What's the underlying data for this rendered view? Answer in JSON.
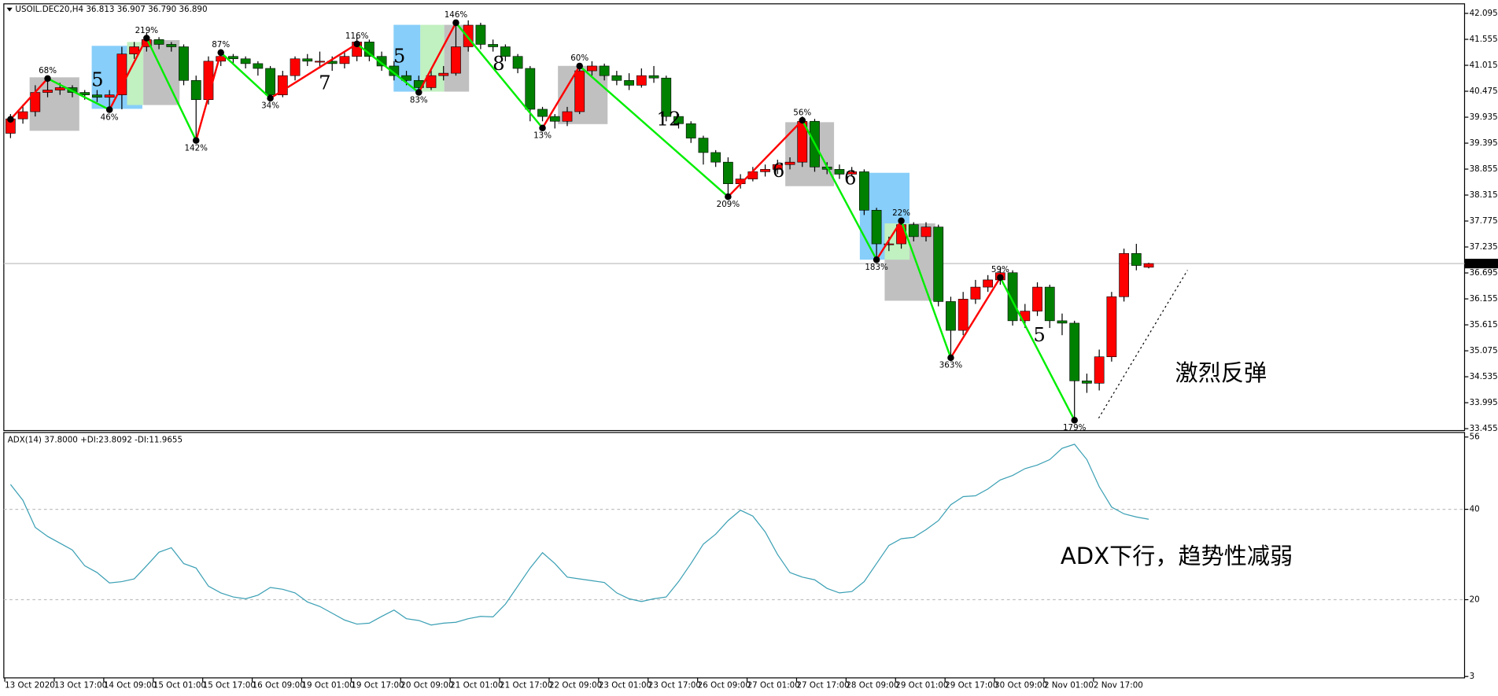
{
  "chart_data": [
    {
      "type": "candlestick",
      "title": "USOIL.DEC20,H4 36.813 36.907 36.790 36.890",
      "categories": [
        "13 Oct 2020",
        null,
        null,
        null,
        "13 Oct 17:00",
        null,
        null,
        null,
        "14 Oct 09:00",
        null,
        null,
        null,
        "15 Oct 01:00",
        null,
        null,
        null,
        "15 Oct 17:00",
        null,
        null,
        null,
        "16 Oct 09:00",
        null,
        null,
        null,
        "19 Oct 01:00",
        null,
        null,
        null,
        "19 Oct 17:00",
        null,
        null,
        null,
        "20 Oct 09:00",
        null,
        null,
        null,
        "21 Oct 01:00",
        null,
        null,
        null,
        "21 Oct 17:00",
        null,
        null,
        null,
        "22 Oct 09:00",
        null,
        null,
        null,
        "23 Oct 01:00",
        null,
        null,
        null,
        "23 Oct 17:00",
        null,
        null,
        null,
        "26 Oct 09:00",
        null,
        null,
        null,
        "27 Oct 01:00",
        null,
        null,
        null,
        "27 Oct 17:00",
        null,
        null,
        null,
        "28 Oct 09:00",
        null,
        null,
        null,
        "29 Oct 01:00",
        null,
        null,
        null,
        "29 Oct 17:00",
        null,
        null,
        null,
        "30 Oct 09:00",
        null,
        null,
        null,
        "2 Nov 01:00",
        null,
        null,
        null,
        "2 Nov 17:00",
        null,
        null,
        null,
        null
      ],
      "open": [
        39.6,
        39.9,
        40.05,
        40.45,
        40.5,
        40.55,
        40.45,
        40.4,
        40.35,
        40.4,
        41.25,
        41.4,
        41.55,
        41.45,
        41.4,
        40.7,
        40.3,
        41.1,
        41.2,
        41.15,
        41.05,
        40.95,
        40.4,
        40.8,
        41.15,
        41.1,
        41.1,
        41.05,
        41.2,
        41.5,
        41.2,
        41.0,
        40.8,
        40.7,
        40.55,
        40.8,
        40.85,
        41.4,
        41.85,
        41.45,
        41.4,
        41.2,
        40.95,
        40.1,
        39.95,
        39.85,
        40.05,
        40.9,
        41.0,
        40.8,
        40.7,
        40.6,
        40.8,
        40.75,
        39.95,
        39.8,
        39.5,
        39.2,
        39.0,
        38.55,
        38.65,
        38.8,
        38.85,
        38.95,
        39.0,
        39.85,
        38.9,
        38.85,
        38.75,
        38.8,
        38.0,
        37.3,
        37.3,
        37.7,
        37.45,
        37.65,
        36.1,
        35.5,
        36.15,
        36.4,
        36.55,
        36.7,
        35.7,
        35.9,
        36.4,
        35.7,
        35.65,
        34.45,
        34.4,
        34.95,
        36.2,
        37.1,
        36.813
      ],
      "high": [
        40.0,
        40.2,
        40.6,
        40.75,
        40.65,
        40.6,
        40.5,
        40.5,
        40.5,
        41.4,
        41.5,
        41.7,
        41.6,
        41.5,
        41.45,
        40.8,
        41.2,
        41.35,
        41.25,
        41.2,
        41.1,
        41.0,
        40.9,
        41.2,
        41.25,
        41.3,
        41.2,
        41.3,
        41.6,
        41.55,
        41.3,
        41.1,
        40.9,
        40.8,
        40.95,
        41.0,
        41.95,
        41.95,
        41.9,
        41.55,
        41.45,
        41.25,
        41.0,
        40.15,
        40.0,
        40.15,
        41.05,
        41.1,
        41.05,
        40.9,
        40.85,
        40.95,
        41.0,
        40.8,
        40.0,
        39.85,
        39.55,
        39.25,
        39.1,
        38.75,
        38.9,
        38.95,
        39.05,
        39.1,
        39.95,
        39.9,
        39.0,
        38.95,
        38.9,
        38.85,
        38.05,
        37.45,
        37.8,
        37.75,
        37.75,
        37.7,
        36.2,
        36.3,
        36.55,
        36.65,
        36.8,
        36.75,
        36.05,
        36.5,
        36.45,
        35.85,
        35.7,
        34.6,
        35.1,
        36.3,
        37.2,
        37.3,
        36.907
      ],
      "low": [
        39.5,
        39.8,
        39.95,
        40.35,
        40.4,
        40.35,
        40.3,
        40.25,
        40.1,
        40.1,
        41.15,
        41.3,
        41.35,
        41.3,
        40.6,
        39.45,
        40.2,
        41.0,
        41.05,
        40.95,
        40.8,
        40.3,
        40.35,
        40.7,
        41.0,
        40.95,
        40.9,
        40.95,
        41.1,
        41.1,
        40.9,
        40.7,
        40.6,
        40.45,
        40.5,
        40.7,
        40.8,
        41.3,
        41.35,
        41.3,
        41.1,
        40.85,
        39.85,
        39.85,
        39.7,
        39.75,
        40.0,
        40.8,
        40.7,
        40.6,
        40.5,
        40.55,
        40.65,
        39.85,
        39.7,
        39.4,
        38.95,
        38.9,
        38.28,
        38.45,
        38.6,
        38.7,
        38.75,
        38.85,
        38.9,
        38.8,
        38.75,
        38.65,
        38.7,
        37.9,
        36.97,
        37.15,
        37.2,
        37.35,
        37.35,
        36.0,
        34.93,
        35.4,
        36.05,
        36.3,
        36.45,
        35.6,
        35.55,
        35.8,
        35.55,
        35.4,
        33.63,
        34.2,
        34.25,
        34.85,
        36.1,
        36.75,
        36.79
      ],
      "close": [
        39.9,
        40.05,
        40.45,
        40.5,
        40.55,
        40.45,
        40.4,
        40.35,
        40.4,
        41.25,
        41.4,
        41.55,
        41.45,
        41.4,
        40.7,
        40.3,
        41.1,
        41.2,
        41.15,
        41.05,
        40.95,
        40.4,
        40.8,
        41.15,
        41.1,
        41.1,
        41.05,
        41.2,
        41.5,
        41.2,
        41.0,
        40.8,
        40.7,
        40.55,
        40.8,
        40.85,
        41.4,
        41.85,
        41.45,
        41.4,
        41.2,
        40.95,
        40.1,
        39.95,
        39.85,
        40.05,
        40.9,
        41.0,
        40.8,
        40.7,
        40.6,
        40.8,
        40.75,
        39.95,
        39.8,
        39.5,
        39.2,
        39.0,
        38.55,
        38.65,
        38.8,
        38.85,
        38.95,
        39.0,
        39.85,
        38.9,
        38.85,
        38.75,
        38.8,
        38.0,
        37.3,
        37.3,
        37.7,
        37.45,
        37.65,
        36.1,
        35.5,
        36.15,
        36.4,
        36.55,
        36.7,
        35.7,
        35.9,
        36.4,
        35.7,
        35.65,
        34.45,
        34.4,
        34.95,
        36.2,
        37.1,
        36.85,
        36.89
      ],
      "up_color": "#ff0000",
      "down_color": "#008000",
      "ylim": [
        33.415,
        42.294
      ],
      "yticks": [
        42.095,
        41.555,
        41.015,
        40.475,
        39.935,
        39.395,
        38.855,
        38.315,
        37.775,
        37.235,
        36.695,
        36.155,
        35.615,
        35.075,
        34.535,
        33.995,
        33.455
      ],
      "last_price": {
        "value": 36.89,
        "label": "36.890"
      },
      "zigzag": {
        "x": [
          0,
          3,
          8,
          11,
          15,
          17,
          21,
          28,
          33,
          36,
          43,
          46,
          58,
          64,
          70,
          72,
          76,
          80,
          86
        ],
        "values": [
          39.89,
          40.74,
          40.09,
          41.58,
          39.45,
          41.28,
          40.33,
          41.46,
          40.45,
          41.9,
          39.71,
          41.0,
          38.28,
          39.87,
          36.97,
          37.78,
          34.93,
          36.6,
          33.63
        ],
        "labels": [
          null,
          "68%",
          "46%",
          "219%",
          "142%",
          "87%",
          "34%",
          "116%",
          "83%",
          "146%",
          "13%",
          "60%",
          "209%",
          "56%",
          "183%",
          "22%",
          "363%",
          "59%",
          "179%"
        ],
        "up_color": "#ff0000",
        "down_color": "#00ee00"
      },
      "wave_labels": [
        5,
        7,
        5,
        8,
        12,
        6,
        6,
        5
      ],
      "annotation": "激烈反弹",
      "annotation_color": "#ff0000"
    },
    {
      "type": "line",
      "title": "ADX(14) 37.8000 +DI:23.8092 -DI:11.9655",
      "values": [
        45.5,
        42,
        36,
        34,
        32.5,
        31,
        27.5,
        26,
        23.7,
        24,
        24.6,
        27.5,
        30.5,
        31.5,
        28,
        27,
        23,
        21.5,
        20.6,
        20.2,
        21,
        22.7,
        22.3,
        21.5,
        19.5,
        18.5,
        17,
        15.5,
        14.6,
        14.8,
        16.3,
        17.7,
        15.8,
        15.4,
        14.4,
        14.8,
        15,
        15.8,
        16.3,
        16.2,
        19,
        23,
        27,
        30.4,
        28,
        25,
        24.6,
        24.2,
        23.8,
        21.5,
        20.2,
        19.6,
        20.2,
        20.6,
        24,
        28,
        32.3,
        34.5,
        37.5,
        39.8,
        38.5,
        35,
        30,
        26,
        25,
        24.4,
        22.5,
        21.5,
        21.8,
        24,
        28,
        32,
        33.5,
        33.8,
        35.5,
        37.5,
        41,
        42.8,
        43,
        44.5,
        46.5,
        47.5,
        49,
        49.8,
        51,
        53.5,
        54.4,
        51,
        45,
        40.5,
        39,
        38.3,
        37.8
      ],
      "color": "#3a9fb4",
      "ylim": [
        2.7,
        57
      ],
      "yticks": [
        56,
        40,
        20,
        3
      ],
      "levels": [
        40,
        20
      ],
      "annotation": "ADX下行，趋势性减弱",
      "annotation_color": "#ff0000"
    }
  ]
}
